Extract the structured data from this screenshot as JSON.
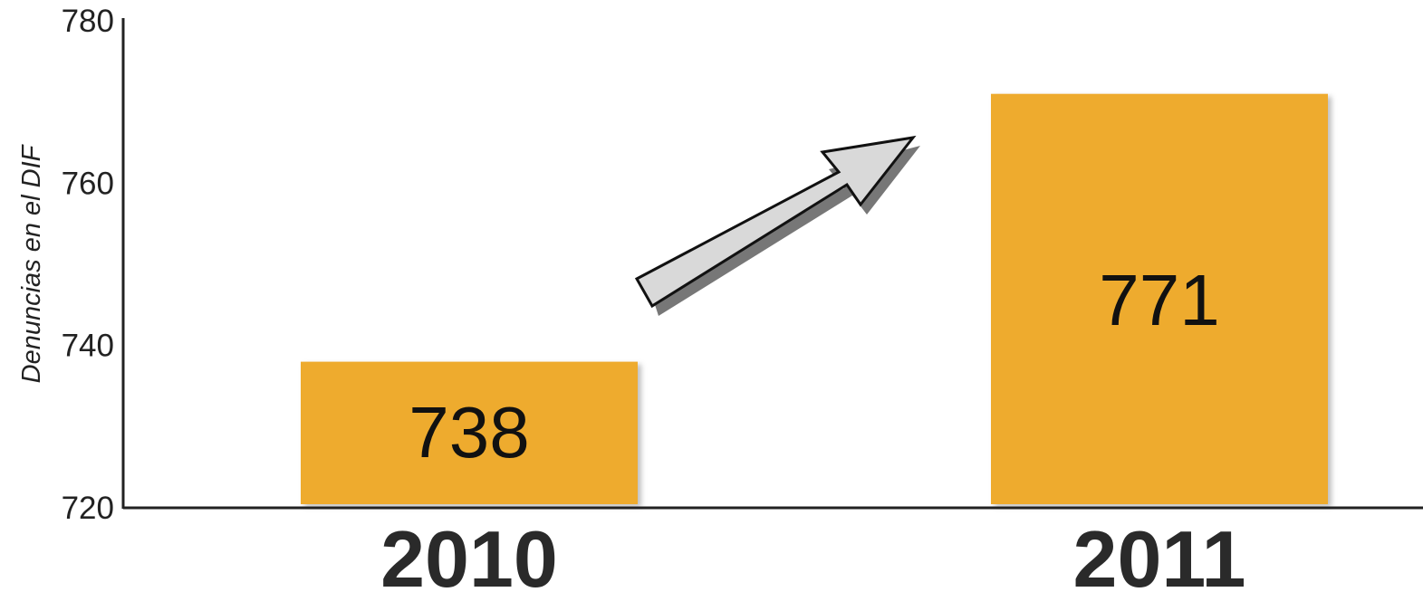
{
  "chart_data": {
    "type": "bar",
    "categories": [
      "2010",
      "2011"
    ],
    "values": [
      738,
      771
    ],
    "data_labels": [
      "738",
      "771"
    ],
    "ylabel": "Denuncias en el DIF",
    "xlabel": "",
    "ylim": [
      720,
      780
    ],
    "yticks": [
      "720",
      "740",
      "760",
      "780"
    ],
    "grid": false,
    "legend": "none",
    "annotation": "arrow pointing upward from 2010 to 2011",
    "colors": {
      "bar": "#EEAB2E",
      "axis": "#222222",
      "arrow_fill": "#D9D9D9",
      "arrow_stroke": "#111111",
      "arrow_shadow": "#777777"
    }
  }
}
